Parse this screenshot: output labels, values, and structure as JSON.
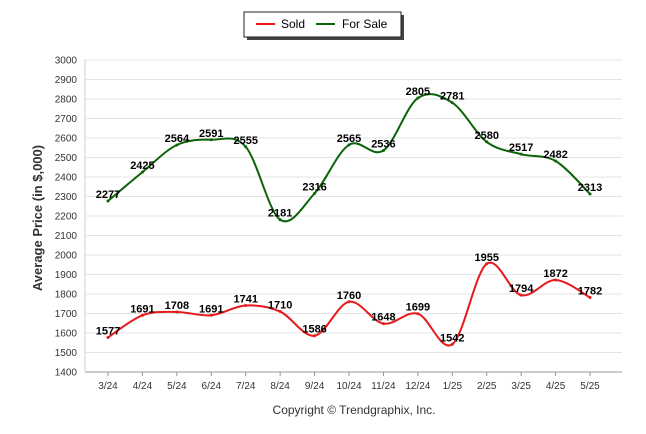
{
  "chart_data": {
    "type": "line",
    "categories": [
      "3/24",
      "4/24",
      "5/24",
      "6/24",
      "7/24",
      "8/24",
      "9/24",
      "10/24",
      "11/24",
      "12/24",
      "1/25",
      "2/25",
      "3/25",
      "4/25",
      "5/25"
    ],
    "series": [
      {
        "name": "Sold",
        "color": "#e8191c",
        "values": [
          1577,
          1691,
          1708,
          1691,
          1741,
          1710,
          1586,
          1760,
          1648,
          1699,
          1542,
          1955,
          1794,
          1872,
          1782
        ]
      },
      {
        "name": "For Sale",
        "color": "#0b6408",
        "values": [
          2277,
          2425,
          2564,
          2591,
          2555,
          2181,
          2316,
          2565,
          2536,
          2805,
          2781,
          2580,
          2517,
          2482,
          2313
        ]
      }
    ],
    "ylabel": "Average Price (in $,000)",
    "xlabel": "",
    "ylim": [
      1400,
      3000
    ],
    "ytick_step": 100,
    "grid": true,
    "legend_position": "top-center",
    "footer": "Copyright © Trendgraphix, Inc."
  }
}
